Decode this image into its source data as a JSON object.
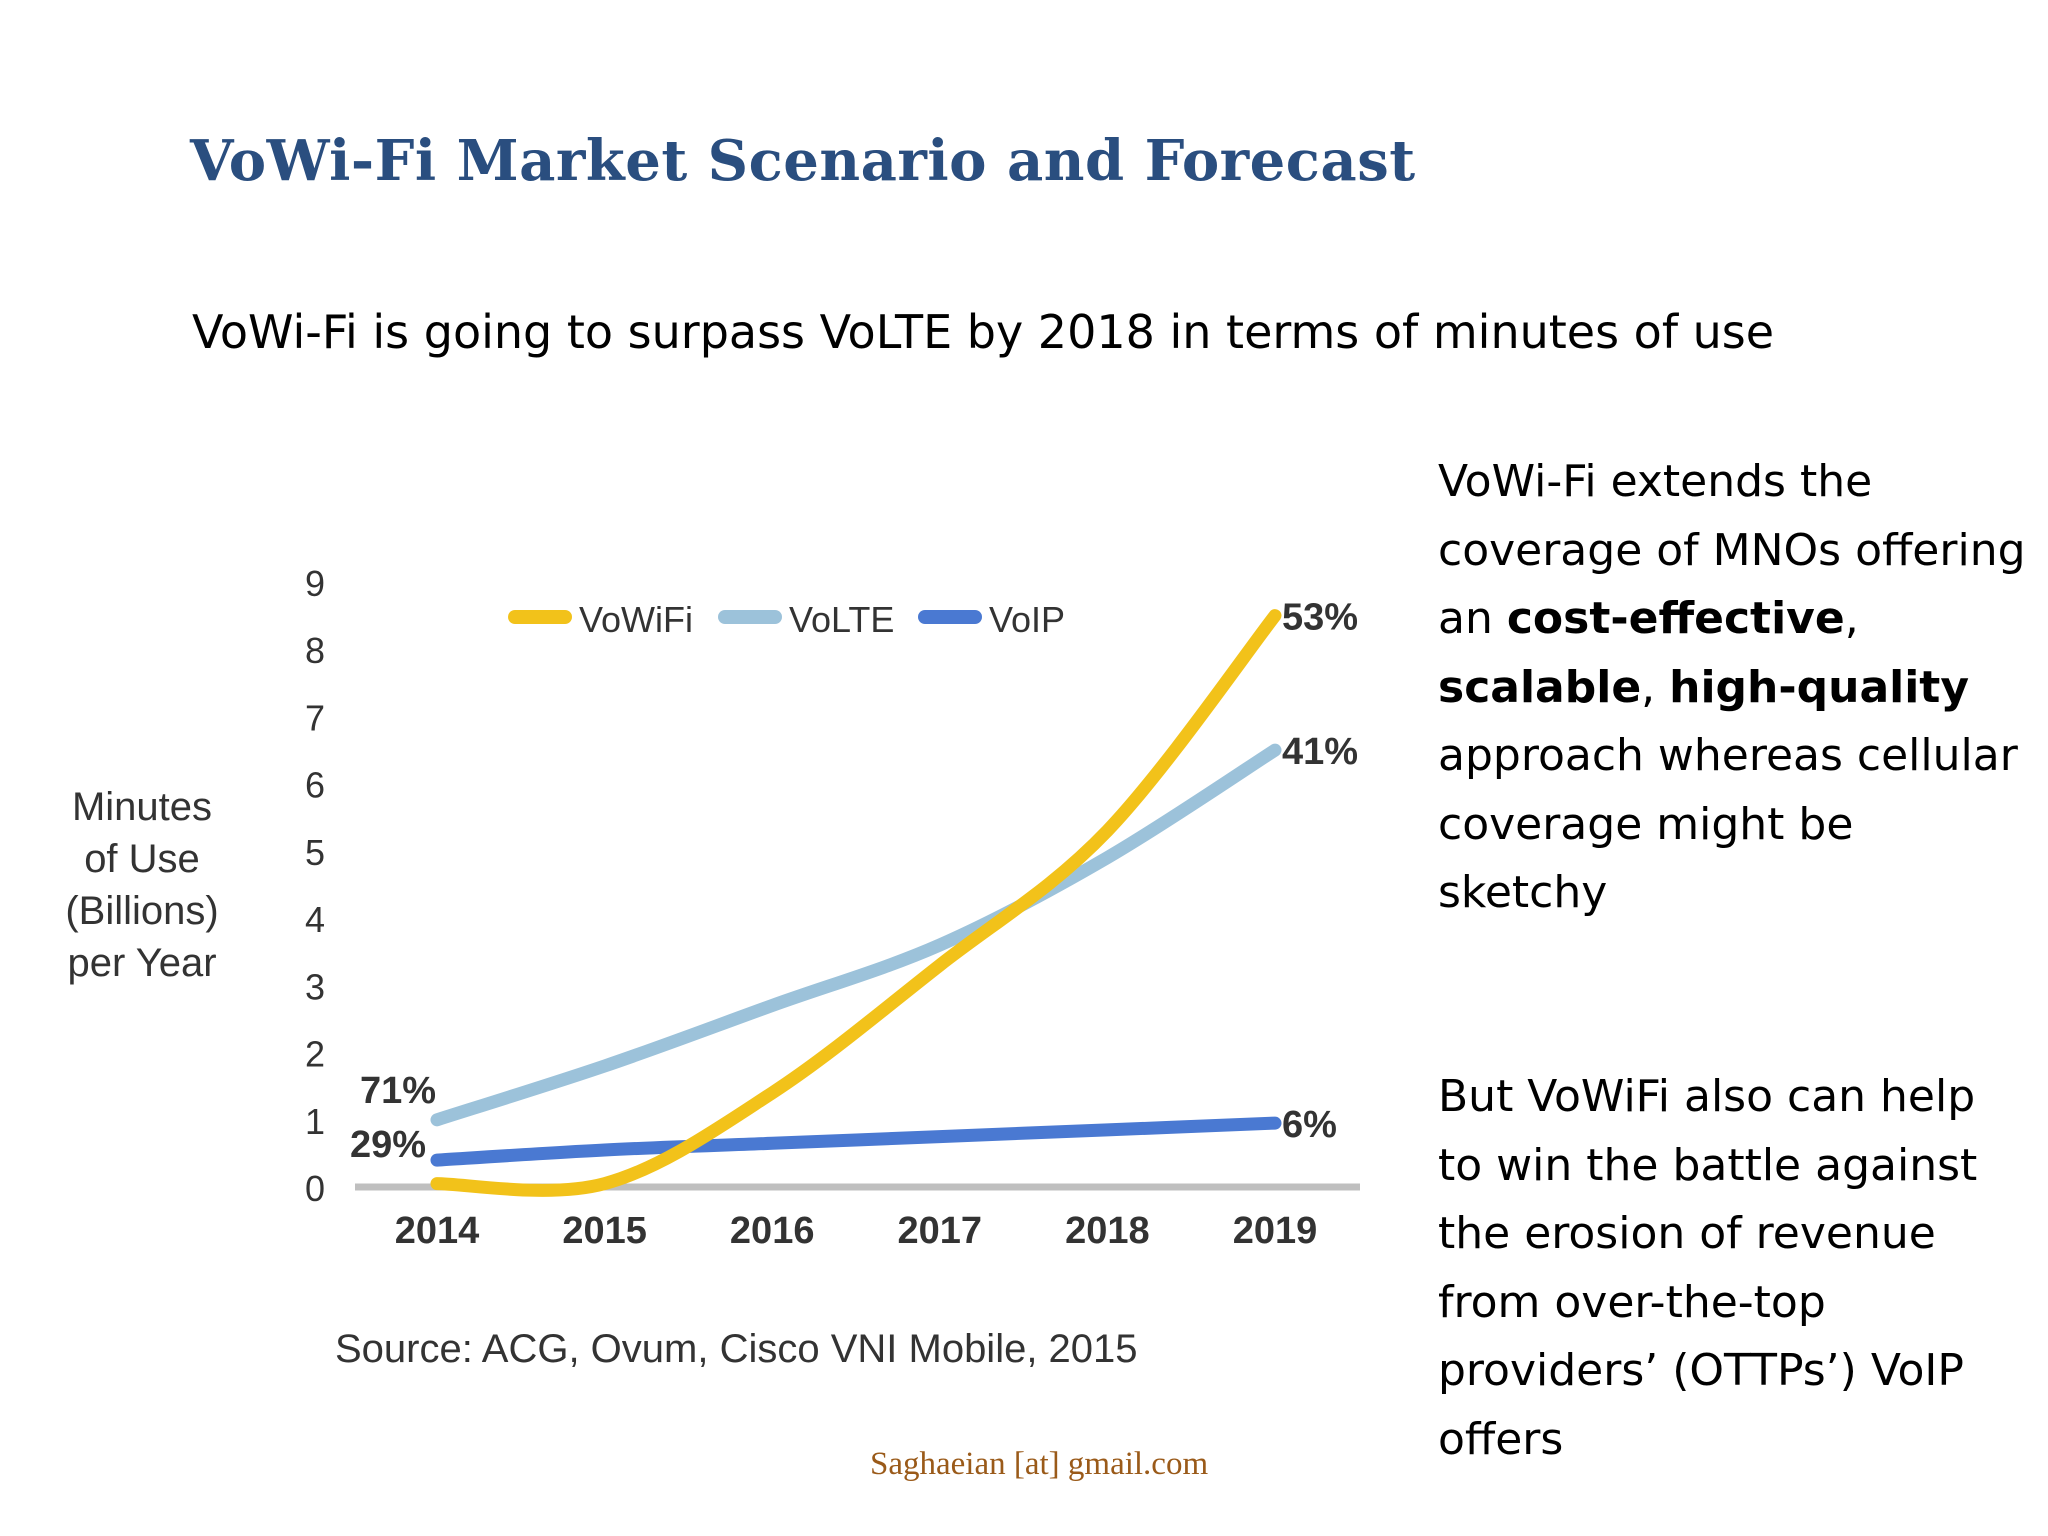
{
  "slide": {
    "title": "VoWi-Fi Market Scenario and Forecast",
    "subtitle": "VoWi-Fi is going to surpass VoLTE by 2018 in terms of minutes of use",
    "side_text": {
      "p1_a": "VoWi-Fi extends the coverage of MNOs offering an ",
      "p1_b1": "cost-effective",
      "p1_c": ", ",
      "p1_b2": "scalable",
      "p1_d": ", ",
      "p1_b3": "high-quality",
      "p1_e": " approach whereas cellular coverage might be sketchy",
      "p2": "But VoWiFi also can help to win the battle against the erosion of revenue from over-the-top providers’ (OTTPs’) VoIP offers"
    },
    "footer": "Saghaeian [at] gmail.com"
  },
  "chart_data": {
    "type": "line",
    "ylabel_lines": [
      "Minutes",
      "of Use",
      "(Billions)",
      "per Year"
    ],
    "x": [
      2014,
      2015,
      2016,
      2017,
      2018,
      2019
    ],
    "x_labels": [
      "2014",
      "2015",
      "2016",
      "2017",
      "2018",
      "2019"
    ],
    "ylim": [
      0,
      9
    ],
    "y_ticks": [
      "0",
      "1",
      "2",
      "3",
      "4",
      "5",
      "6",
      "7",
      "8",
      "9"
    ],
    "grid": false,
    "legend_position": "top",
    "source": "Source: ACG, Ovum, Cisco VNI Mobile, 2015",
    "series": [
      {
        "name": "VoWiFi",
        "color": "#f2c21a",
        "values": [
          0.05,
          0.05,
          1.4,
          3.3,
          5.3,
          8.5
        ],
        "end_label": "53%"
      },
      {
        "name": "VoLTE",
        "color": "#9cc2da",
        "values": [
          1.0,
          1.8,
          2.7,
          3.6,
          4.9,
          6.5
        ],
        "end_label": "41%",
        "start_label": "71%"
      },
      {
        "name": "VoIP",
        "color": "#4a79d2",
        "values": [
          0.4,
          0.55,
          0.65,
          0.75,
          0.85,
          0.95
        ],
        "end_label": "6%",
        "start_label": "29%"
      }
    ]
  }
}
